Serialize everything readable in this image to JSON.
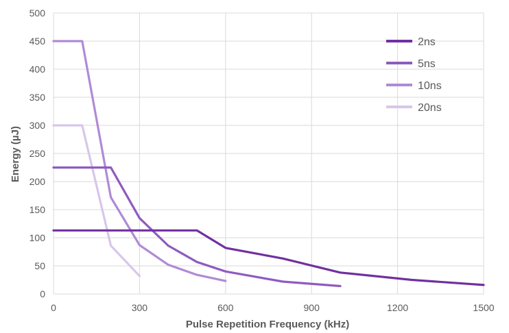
{
  "chart_data": {
    "type": "line",
    "title": "",
    "xlabel": "Pulse Repetition Frequency (kHz)",
    "ylabel": "Energy (µJ)",
    "xlim": [
      0,
      1500
    ],
    "ylim": [
      0,
      500
    ],
    "x_ticks": [
      0,
      300,
      600,
      900,
      1200,
      1500
    ],
    "y_ticks": [
      0,
      50,
      100,
      150,
      200,
      250,
      300,
      350,
      400,
      450,
      500
    ],
    "x_tick_labels": [
      "0",
      "300",
      "600",
      "900",
      "1200",
      "1500"
    ],
    "y_tick_labels": [
      "0",
      "50",
      "100",
      "150",
      "200",
      "250",
      "300",
      "350",
      "400",
      "450",
      "500"
    ],
    "grid": true,
    "legend_position": "top-right",
    "series": [
      {
        "name": "2ns",
        "color": "#7030a0",
        "x": [
          0,
          500,
          600,
          800,
          1000,
          1250,
          1500
        ],
        "y": [
          113,
          113,
          82,
          63,
          38,
          25,
          16
        ]
      },
      {
        "name": "5ns",
        "color": "#8e5bbf",
        "x": [
          0,
          200,
          300,
          400,
          500,
          600,
          800,
          1000
        ],
        "y": [
          225,
          225,
          135,
          86,
          57,
          40,
          22,
          14
        ]
      },
      {
        "name": "10ns",
        "color": "#b08ad6",
        "x": [
          0,
          100,
          200,
          300,
          400,
          500,
          600
        ],
        "y": [
          450,
          450,
          172,
          87,
          52,
          34,
          23
        ]
      },
      {
        "name": "20ns",
        "color": "#d8c6ea",
        "x": [
          0,
          100,
          200,
          300
        ],
        "y": [
          300,
          300,
          86,
          32
        ]
      }
    ]
  }
}
